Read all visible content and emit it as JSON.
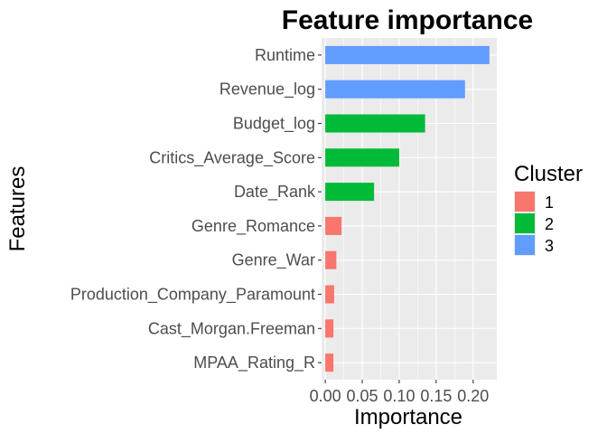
{
  "chart_data": {
    "type": "bar",
    "orientation": "horizontal",
    "title": "Feature importance",
    "xlabel": "Importance",
    "ylabel": "Features",
    "xlim": [
      -0.005,
      0.232
    ],
    "xticks": [
      0.0,
      0.05,
      0.1,
      0.15,
      0.2
    ],
    "xtick_labels": [
      "0.00",
      "0.05",
      "0.10",
      "0.15",
      "0.20"
    ],
    "grid": true,
    "legend_placement": "right",
    "legend": {
      "title": "Cluster",
      "entries": [
        {
          "label": "1",
          "color": "#f8766d"
        },
        {
          "label": "2",
          "color": "#00ba38"
        },
        {
          "label": "3",
          "color": "#619cff"
        }
      ]
    },
    "bars": [
      {
        "feature": "Runtime",
        "value": 0.222,
        "cluster": "3"
      },
      {
        "feature": "Revenue_log",
        "value": 0.189,
        "cluster": "3"
      },
      {
        "feature": "Budget_log",
        "value": 0.135,
        "cluster": "2"
      },
      {
        "feature": "Critics_Average_Score",
        "value": 0.1,
        "cluster": "2"
      },
      {
        "feature": "Date_Rank",
        "value": 0.066,
        "cluster": "2"
      },
      {
        "feature": "Genre_Romance",
        "value": 0.022,
        "cluster": "1"
      },
      {
        "feature": "Genre_War",
        "value": 0.015,
        "cluster": "1"
      },
      {
        "feature": "Production_Company_Paramount",
        "value": 0.012,
        "cluster": "1"
      },
      {
        "feature": "Cast_Morgan.Freeman",
        "value": 0.011,
        "cluster": "1"
      },
      {
        "feature": "MPAA_Rating_R",
        "value": 0.011,
        "cluster": "1"
      }
    ],
    "colors": {
      "panel_background": "#ebebeb",
      "grid_major": "#ffffff",
      "tick_text": "#4d4d4d"
    }
  }
}
